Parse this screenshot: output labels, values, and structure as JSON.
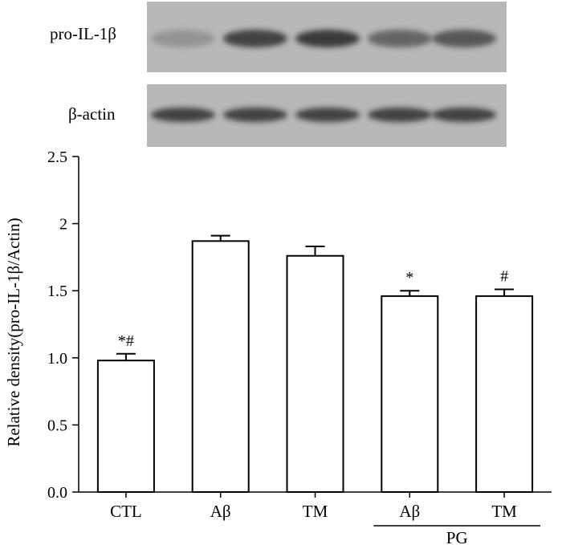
{
  "blots": [
    {
      "label": "pro-IL-1β",
      "band_intensity": [
        0.25,
        0.85,
        0.9,
        0.6,
        0.7
      ]
    },
    {
      "label": "β-actin",
      "band_intensity": [
        0.85,
        0.85,
        0.85,
        0.85,
        0.85
      ]
    }
  ],
  "colors": {
    "membrane": "#b8b8b8",
    "band": "#2e2e2e",
    "bar_fill": "#ffffff",
    "stroke": "#000000"
  },
  "chart_data": {
    "type": "bar",
    "categories": [
      "CTL",
      "Aβ",
      "TM",
      "Aβ",
      "TM"
    ],
    "values": [
      0.98,
      1.87,
      1.76,
      1.46,
      1.46
    ],
    "errors": [
      0.05,
      0.04,
      0.07,
      0.04,
      0.05
    ],
    "annotations": [
      "*#",
      "",
      "",
      "*",
      "#"
    ],
    "group_label": {
      "text": "PG",
      "categories": [
        3,
        4
      ]
    },
    "ylabel": "Relative density(pro-IL-1β/Actin)",
    "xlabel": "",
    "ylim": [
      0,
      2.5
    ],
    "yticks": [
      "0.0",
      "0.5",
      "1.0",
      "1.5",
      "2",
      "2.5"
    ],
    "ytick_values": [
      0,
      0.5,
      1.0,
      1.5,
      2,
      2.5
    ],
    "grid": false
  }
}
